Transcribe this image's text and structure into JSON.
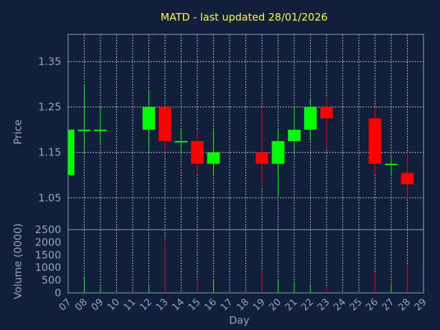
{
  "chart_data": {
    "type": "candlestick",
    "title": "MATD - last updated 28/01/2026",
    "xlabel": "Day",
    "price_panel": {
      "ylabel": "Price",
      "ylim": [
        0.98,
        1.41
      ],
      "yticks": [
        "1.35",
        "1.25",
        "1.15",
        "1.05"
      ],
      "ytick_values": [
        1.35,
        1.25,
        1.15,
        1.05
      ],
      "grid": true
    },
    "volume_panel": {
      "ylabel": "Volume (0000)",
      "ylim": [
        0,
        2500
      ],
      "yticks": [
        "2500",
        "2000",
        "1500",
        "1000",
        "500",
        "0"
      ],
      "ytick_values": [
        2500,
        2000,
        1500,
        1000,
        500,
        0
      ]
    },
    "x_ticks": [
      "07",
      "08",
      "09",
      "10",
      "11",
      "12",
      "13",
      "14",
      "15",
      "16",
      "17",
      "18",
      "19",
      "20",
      "21",
      "22",
      "23",
      "24",
      "25",
      "26",
      "27",
      "28",
      "29"
    ],
    "x_range": [
      7,
      29
    ],
    "colors": {
      "up": "#00ff00",
      "down": "#ff0000",
      "background": "#10203a",
      "axis": "#8aa8c8",
      "title": "#ffff33"
    },
    "candles": [
      {
        "day": 7,
        "open": 1.1,
        "high": 1.2,
        "low": 1.1,
        "close": 1.2,
        "volume": 0
      },
      {
        "day": 8,
        "open": 1.2,
        "high": 1.3,
        "low": 1.15,
        "close": 1.2,
        "volume": 600
      },
      {
        "day": 9,
        "open": 1.2,
        "high": 1.25,
        "low": 1.165,
        "close": 1.2,
        "volume": 250
      },
      {
        "day": 12,
        "open": 1.2,
        "high": 1.29,
        "low": 1.15,
        "close": 1.25,
        "volume": 250
      },
      {
        "day": 13,
        "open": 1.25,
        "high": 1.25,
        "low": 1.15,
        "close": 1.175,
        "volume": 2150
      },
      {
        "day": 14,
        "open": 1.175,
        "high": 1.2,
        "low": 1.15,
        "close": 1.175,
        "volume": 0
      },
      {
        "day": 15,
        "open": 1.175,
        "high": 1.2,
        "low": 1.1,
        "close": 1.125,
        "volume": 500
      },
      {
        "day": 16,
        "open": 1.125,
        "high": 1.2,
        "low": 1.1,
        "close": 1.15,
        "volume": 500
      },
      {
        "day": 19,
        "open": 1.15,
        "high": 1.25,
        "low": 1.075,
        "close": 1.125,
        "volume": 850
      },
      {
        "day": 20,
        "open": 1.125,
        "high": 1.2,
        "low": 1.05,
        "close": 1.175,
        "volume": 500
      },
      {
        "day": 21,
        "open": 1.175,
        "high": 1.25,
        "low": 1.15,
        "close": 1.2,
        "volume": 450
      },
      {
        "day": 22,
        "open": 1.2,
        "high": 1.27,
        "low": 1.175,
        "close": 1.25,
        "volume": 300
      },
      {
        "day": 23,
        "open": 1.25,
        "high": 1.27,
        "low": 1.16,
        "close": 1.225,
        "volume": 250
      },
      {
        "day": 26,
        "open": 1.225,
        "high": 1.25,
        "low": 1.1,
        "close": 1.125,
        "volume": 800
      },
      {
        "day": 27,
        "open": 1.125,
        "high": 1.14,
        "low": 1.1,
        "close": 1.125,
        "volume": 350
      },
      {
        "day": 28,
        "open": 1.105,
        "high": 1.15,
        "low": 1.05,
        "close": 1.08,
        "volume": 1150
      }
    ]
  }
}
